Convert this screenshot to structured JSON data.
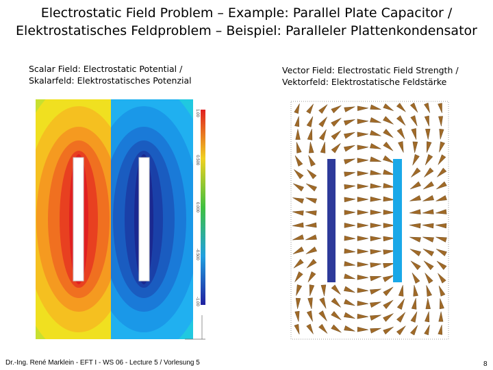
{
  "header": {
    "title_line1": "Electrostatic Field Problem – Example: Parallel Plate Capacitor /",
    "title_line2": "Elektrostatisches Feldproblem – Beispiel: Paralleler Plattenkondensator"
  },
  "left_panel": {
    "caption_line1": "Scalar Field: Electrostatic Potential /",
    "caption_line2": "Skalarfeld: Elektrostatisches Potenzial",
    "colorbar_labels": [
      "1.00",
      "0.500",
      "0.000",
      "-0.500",
      "-1.00"
    ]
  },
  "right_panel": {
    "caption_line1": "Vector Field: Electrostatic Field Strength /",
    "caption_line2": "Vektorfeld: Elektrostatische Feldstärke"
  },
  "footer": {
    "text": "Dr.-Ing. René Marklein - EFT I - WS 06 - Lecture 5 / Vorlesung 5",
    "page": "8"
  }
}
